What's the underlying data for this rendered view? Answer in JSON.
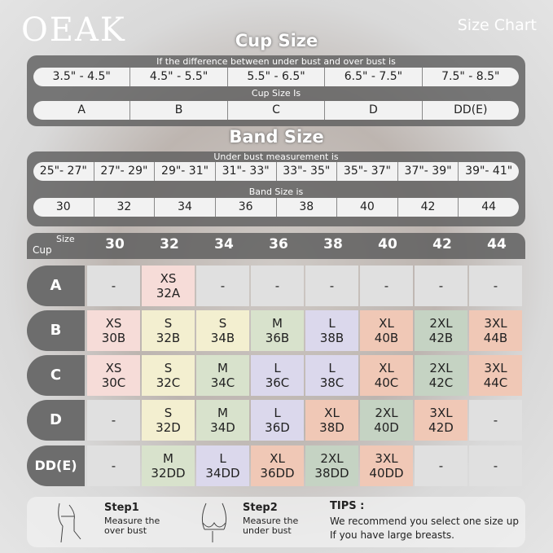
{
  "brand": "OEAK",
  "heading": "Size Chart",
  "cup": {
    "title": "Cup Size",
    "diff_label": "If the  difference between under bust and over bust is",
    "ranges": [
      "3.5\" - 4.5\"",
      "4.5\" - 5.5\"",
      "5.5\" - 6.5\"",
      "6.5\" - 7.5\"",
      "7.5\" - 8.5\""
    ],
    "is_label": "Cup Size Is",
    "sizes": [
      "A",
      "B",
      "C",
      "D",
      "DD(E)"
    ]
  },
  "band": {
    "title": "Band Size",
    "meas_label": "Under bust measurement is",
    "ranges": [
      "25\"- 27\"",
      "27\"- 29\"",
      "29\"- 31\"",
      "31\"- 33\"",
      "33\"- 35\"",
      "35\"- 37\"",
      "37\"- 39\"",
      "39\"- 41\""
    ],
    "is_label": "Band Size is",
    "sizes": [
      "30",
      "32",
      "34",
      "36",
      "38",
      "40",
      "42",
      "44"
    ]
  },
  "grid": {
    "size_label": "Size",
    "cup_label": "Cup",
    "columns": [
      "30",
      "32",
      "34",
      "36",
      "38",
      "40",
      "42",
      "44"
    ],
    "palette": {
      "gray": "#e0e0e0",
      "pink": "#f6dcd8",
      "yellow": "#f3efd0",
      "green": "#d8e2cc",
      "lavender": "#dbd8ec",
      "salmon": "#f0c8b6",
      "sage": "#c5d3c3"
    },
    "rows": [
      {
        "cup": "A",
        "cells": [
          [
            "-",
            "",
            "gray"
          ],
          [
            "XS",
            "32A",
            "pink"
          ],
          [
            "-",
            "",
            "gray"
          ],
          [
            "-",
            "",
            "gray"
          ],
          [
            "-",
            "",
            "gray"
          ],
          [
            "-",
            "",
            "gray"
          ],
          [
            "-",
            "",
            "gray"
          ],
          [
            "-",
            "",
            "gray"
          ]
        ]
      },
      {
        "cup": "B",
        "cells": [
          [
            "XS",
            "30B",
            "pink"
          ],
          [
            "S",
            "32B",
            "yellow"
          ],
          [
            "S",
            "34B",
            "yellow"
          ],
          [
            "M",
            "36B",
            "green"
          ],
          [
            "L",
            "38B",
            "lavender"
          ],
          [
            "XL",
            "40B",
            "salmon"
          ],
          [
            "2XL",
            "42B",
            "sage"
          ],
          [
            "3XL",
            "44B",
            "salmon"
          ]
        ]
      },
      {
        "cup": "C",
        "cells": [
          [
            "XS",
            "30C",
            "pink"
          ],
          [
            "S",
            "32C",
            "yellow"
          ],
          [
            "M",
            "34C",
            "green"
          ],
          [
            "L",
            "36C",
            "lavender"
          ],
          [
            "L",
            "38C",
            "lavender"
          ],
          [
            "XL",
            "40C",
            "salmon"
          ],
          [
            "2XL",
            "42C",
            "sage"
          ],
          [
            "3XL",
            "44C",
            "salmon"
          ]
        ]
      },
      {
        "cup": "D",
        "cells": [
          [
            "-",
            "",
            "gray"
          ],
          [
            "S",
            "32D",
            "yellow"
          ],
          [
            "M",
            "34D",
            "green"
          ],
          [
            "L",
            "36D",
            "lavender"
          ],
          [
            "XL",
            "38D",
            "salmon"
          ],
          [
            "2XL",
            "40D",
            "sage"
          ],
          [
            "3XL",
            "42D",
            "salmon"
          ],
          [
            "-",
            "",
            "gray"
          ]
        ]
      },
      {
        "cup": "DD(E)",
        "cells": [
          [
            "-",
            "",
            "gray"
          ],
          [
            "M",
            "32DD",
            "green"
          ],
          [
            "L",
            "34DD",
            "lavender"
          ],
          [
            "XL",
            "36DD",
            "salmon"
          ],
          [
            "2XL",
            "38DD",
            "sage"
          ],
          [
            "3XL",
            "40DD",
            "salmon"
          ],
          [
            "-",
            "",
            "gray"
          ],
          [
            "-",
            "",
            "gray"
          ]
        ]
      }
    ]
  },
  "footer": {
    "step1_title": "Step1",
    "step1_text": "Measure the over bust",
    "step2_title": "Step2",
    "step2_text": "Measure the under bust",
    "tips_title": "TIPS :",
    "tips_line1": "We recommend you select one size up",
    "tips_line2": "If you have large breasts."
  }
}
